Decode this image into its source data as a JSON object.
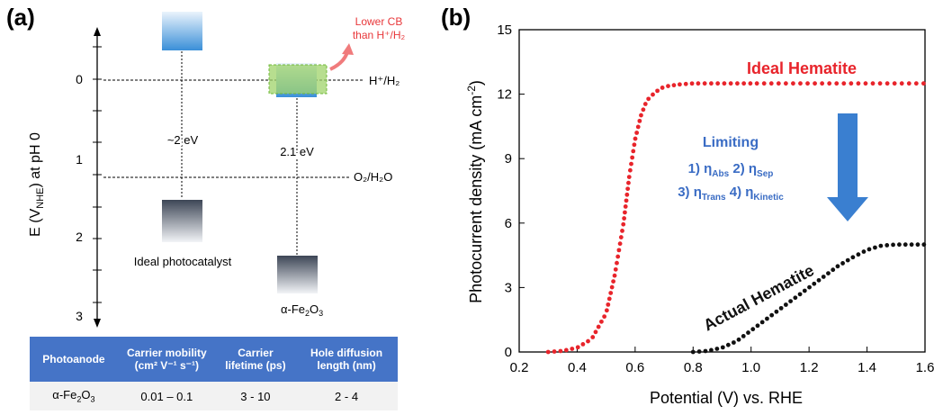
{
  "panel_a": {
    "label": "(a)",
    "ylabel_main": "E (V",
    "ylabel_sub": "NHE",
    "ylabel_tail": ") at pH 0",
    "yticks": [
      "0",
      "1",
      "2",
      "3"
    ],
    "ref_hplus": "H⁺/H₂",
    "ref_o2": "O₂/H₂O",
    "gap_ideal": "~2 eV",
    "gap_fe2o3": "2.1 eV",
    "name_ideal": "Ideal photocatalyst",
    "name_fe2o3_main": "α-Fe",
    "name_fe2o3_sub1": "2",
    "name_fe2o3_mid": "O",
    "name_fe2o3_sub2": "3",
    "note_line1": "Lower CB",
    "note_line2": "than H⁺/H₂",
    "note_color": "#e8373a",
    "band_color": "#3a8fd8",
    "highlight_color": "#9fd36a"
  },
  "table": {
    "headers": [
      "Photoanode",
      "Carrier mobility (cm² V⁻¹ s⁻¹)",
      "Carrier lifetime (ps)",
      "Hole diffusion length (nm)"
    ],
    "header_color": "#4574c7",
    "row": {
      "photoanode_main": "α-Fe",
      "photoanode_sub1": "2",
      "photoanode_mid": "O",
      "photoanode_sub2": "3",
      "mobility": "0.01 – 0.1",
      "lifetime": "3 - 10",
      "diffusion": "2 - 4"
    }
  },
  "panel_b": {
    "label": "(b)",
    "chart_data": {
      "type": "line",
      "xlabel": "Potential  (V) vs. RHE",
      "ylabel": "Photocurrent density (mA cm⁻²)",
      "xlim": [
        0.2,
        1.6
      ],
      "ylim": [
        0,
        15
      ],
      "xticks": [
        "0.2",
        "0.4",
        "0.6",
        "0.8",
        "1.0",
        "1.2",
        "1.4",
        "1.6"
      ],
      "yticks": [
        "0",
        "3",
        "6",
        "9",
        "12",
        "15"
      ],
      "series": [
        {
          "name": "Ideal Hematite",
          "color": "#e8242b",
          "x": [
            0.3,
            0.35,
            0.4,
            0.45,
            0.5,
            0.53,
            0.56,
            0.58,
            0.6,
            0.62,
            0.64,
            0.67,
            0.7,
            0.75,
            0.8,
            0.9,
            1.0,
            1.2,
            1.4,
            1.6
          ],
          "y": [
            0.0,
            0.05,
            0.2,
            0.6,
            1.8,
            3.6,
            6.0,
            8.2,
            9.9,
            11.0,
            11.7,
            12.1,
            12.35,
            12.45,
            12.5,
            12.5,
            12.5,
            12.5,
            12.5,
            12.5
          ]
        },
        {
          "name": "Actual Hematite",
          "color": "#111111",
          "x": [
            0.8,
            0.85,
            0.9,
            0.95,
            1.0,
            1.05,
            1.1,
            1.15,
            1.2,
            1.25,
            1.3,
            1.35,
            1.4,
            1.45,
            1.5,
            1.55,
            1.6
          ],
          "y": [
            0.0,
            0.05,
            0.2,
            0.5,
            1.0,
            1.5,
            2.0,
            2.5,
            3.0,
            3.5,
            4.0,
            4.4,
            4.75,
            4.95,
            5.0,
            5.0,
            5.0
          ]
        }
      ],
      "annotation": {
        "title": "Limiting",
        "line1": "1) ηAbs 2) ηSep",
        "line2": "3) ηTrans 4) ηKinetic",
        "color": "#3a6cc4"
      }
    }
  }
}
